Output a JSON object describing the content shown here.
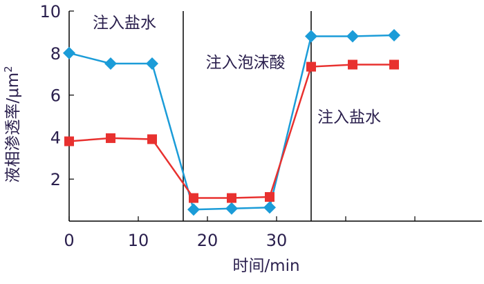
{
  "chart_data": {
    "type": "line",
    "xlabel": "时间/min",
    "ylabel": "液相渗透率/μm",
    "ylabel_superscript": "2",
    "xlim": [
      0,
      40
    ],
    "ylim": [
      0,
      10
    ],
    "x_ticks": [
      0,
      10,
      20,
      30
    ],
    "x_tick_labels": [
      "0",
      "10",
      "20",
      "30"
    ],
    "y_ticks": [
      2,
      4,
      6,
      8,
      10
    ],
    "y_tick_labels": [
      "2",
      "4",
      "6",
      "8",
      "10"
    ],
    "phase_boundaries": [
      16.5,
      35
    ],
    "annotations": [
      {
        "text": "注入盐水",
        "x": 8,
        "y": 9.2
      },
      {
        "text": "注入泡沫酸",
        "x": 25.5,
        "y": 7.3
      },
      {
        "text": "注入盐水",
        "x": 40.5,
        "y": 4.7
      }
    ],
    "series": [
      {
        "marker": "diamond",
        "color": "#1b9cd8",
        "x": [
          0,
          6,
          12,
          18,
          23.5,
          29,
          35,
          41,
          47
        ],
        "y": [
          8.0,
          7.5,
          7.5,
          0.55,
          0.6,
          0.65,
          8.8,
          8.8,
          8.85
        ]
      },
      {
        "marker": "square",
        "color": "#e8312f",
        "x": [
          0,
          6,
          12,
          18,
          23.5,
          29,
          35,
          41,
          47
        ],
        "y": [
          3.8,
          3.95,
          3.9,
          1.1,
          1.1,
          1.15,
          7.35,
          7.45,
          7.45
        ]
      }
    ]
  }
}
